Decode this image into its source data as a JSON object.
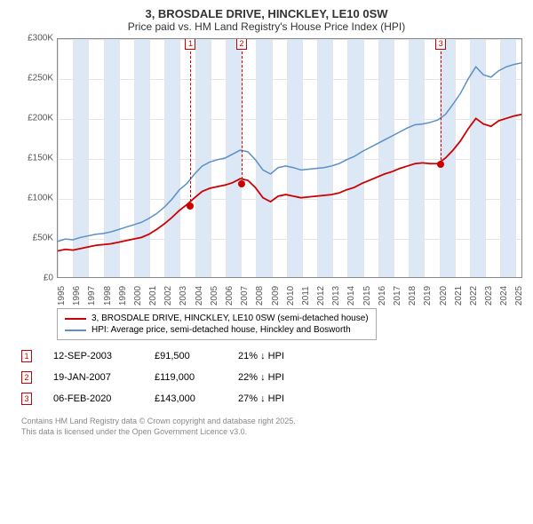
{
  "title": "3, BROSDALE DRIVE, HINCKLEY, LE10 0SW",
  "subtitle": "Price paid vs. HM Land Registry's House Price Index (HPI)",
  "chart": {
    "type": "line",
    "xlim": [
      1995,
      2025.5
    ],
    "ylim": [
      0,
      300000
    ],
    "y_ticks": [
      0,
      50000,
      100000,
      150000,
      200000,
      250000,
      300000
    ],
    "y_labels": [
      "£0",
      "£50K",
      "£100K",
      "£150K",
      "£200K",
      "£250K",
      "£300K"
    ],
    "x_ticks": [
      1995,
      1996,
      1997,
      1998,
      1999,
      2000,
      2001,
      2002,
      2003,
      2004,
      2005,
      2006,
      2007,
      2008,
      2009,
      2010,
      2011,
      2012,
      2013,
      2014,
      2015,
      2016,
      2017,
      2018,
      2019,
      2020,
      2021,
      2022,
      2023,
      2024,
      2025
    ],
    "background_color": "#ffffff",
    "grid_color": "#e5e5e5",
    "band_color": "#dce8f5",
    "series": [
      {
        "name": "hpi",
        "color": "#5b8fc7",
        "width": 1.5,
        "points": [
          [
            1995,
            45000
          ],
          [
            1995.5,
            48000
          ],
          [
            1996,
            47000
          ],
          [
            1996.5,
            50000
          ],
          [
            1997,
            52000
          ],
          [
            1997.5,
            54000
          ],
          [
            1998,
            55000
          ],
          [
            1998.5,
            57000
          ],
          [
            1999,
            60000
          ],
          [
            1999.5,
            63000
          ],
          [
            2000,
            66000
          ],
          [
            2000.5,
            69000
          ],
          [
            2001,
            74000
          ],
          [
            2001.5,
            80000
          ],
          [
            2002,
            88000
          ],
          [
            2002.5,
            98000
          ],
          [
            2003,
            110000
          ],
          [
            2003.5,
            118000
          ],
          [
            2004,
            130000
          ],
          [
            2004.5,
            140000
          ],
          [
            2005,
            145000
          ],
          [
            2005.5,
            148000
          ],
          [
            2006,
            150000
          ],
          [
            2006.5,
            155000
          ],
          [
            2007,
            160000
          ],
          [
            2007.5,
            158000
          ],
          [
            2008,
            148000
          ],
          [
            2008.5,
            135000
          ],
          [
            2009,
            130000
          ],
          [
            2009.5,
            138000
          ],
          [
            2010,
            140000
          ],
          [
            2010.5,
            138000
          ],
          [
            2011,
            135000
          ],
          [
            2011.5,
            136000
          ],
          [
            2012,
            137000
          ],
          [
            2012.5,
            138000
          ],
          [
            2013,
            140000
          ],
          [
            2013.5,
            143000
          ],
          [
            2014,
            148000
          ],
          [
            2014.5,
            152000
          ],
          [
            2015,
            158000
          ],
          [
            2015.5,
            163000
          ],
          [
            2016,
            168000
          ],
          [
            2016.5,
            173000
          ],
          [
            2017,
            178000
          ],
          [
            2017.5,
            183000
          ],
          [
            2018,
            188000
          ],
          [
            2018.5,
            192000
          ],
          [
            2019,
            193000
          ],
          [
            2019.5,
            195000
          ],
          [
            2020,
            198000
          ],
          [
            2020.5,
            205000
          ],
          [
            2021,
            218000
          ],
          [
            2021.5,
            232000
          ],
          [
            2022,
            250000
          ],
          [
            2022.5,
            265000
          ],
          [
            2023,
            255000
          ],
          [
            2023.5,
            252000
          ],
          [
            2024,
            260000
          ],
          [
            2024.5,
            265000
          ],
          [
            2025,
            268000
          ],
          [
            2025.5,
            270000
          ]
        ]
      },
      {
        "name": "property",
        "color": "#cc0000",
        "width": 1.8,
        "points": [
          [
            1995,
            33000
          ],
          [
            1995.5,
            35000
          ],
          [
            1996,
            34000
          ],
          [
            1996.5,
            36000
          ],
          [
            1997,
            38000
          ],
          [
            1997.5,
            40000
          ],
          [
            1998,
            41000
          ],
          [
            1998.5,
            42000
          ],
          [
            1999,
            44000
          ],
          [
            1999.5,
            46000
          ],
          [
            2000,
            48000
          ],
          [
            2000.5,
            50000
          ],
          [
            2001,
            54000
          ],
          [
            2001.5,
            60000
          ],
          [
            2002,
            67000
          ],
          [
            2002.5,
            75000
          ],
          [
            2003,
            84000
          ],
          [
            2003.5,
            91500
          ],
          [
            2004,
            100000
          ],
          [
            2004.5,
            108000
          ],
          [
            2005,
            112000
          ],
          [
            2005.5,
            114000
          ],
          [
            2006,
            116000
          ],
          [
            2006.5,
            119000
          ],
          [
            2007,
            124000
          ],
          [
            2007.5,
            122000
          ],
          [
            2008,
            113000
          ],
          [
            2008.5,
            100000
          ],
          [
            2009,
            95000
          ],
          [
            2009.5,
            102000
          ],
          [
            2010,
            104000
          ],
          [
            2010.5,
            102000
          ],
          [
            2011,
            100000
          ],
          [
            2011.5,
            101000
          ],
          [
            2012,
            102000
          ],
          [
            2012.5,
            103000
          ],
          [
            2013,
            104000
          ],
          [
            2013.5,
            106000
          ],
          [
            2014,
            110000
          ],
          [
            2014.5,
            113000
          ],
          [
            2015,
            118000
          ],
          [
            2015.5,
            122000
          ],
          [
            2016,
            126000
          ],
          [
            2016.5,
            130000
          ],
          [
            2017,
            133000
          ],
          [
            2017.5,
            137000
          ],
          [
            2018,
            140000
          ],
          [
            2018.5,
            143000
          ],
          [
            2019,
            144000
          ],
          [
            2019.5,
            143000
          ],
          [
            2020,
            143000
          ],
          [
            2020.5,
            150000
          ],
          [
            2021,
            160000
          ],
          [
            2021.5,
            172000
          ],
          [
            2022,
            187000
          ],
          [
            2022.5,
            200000
          ],
          [
            2023,
            193000
          ],
          [
            2023.5,
            190000
          ],
          [
            2024,
            197000
          ],
          [
            2024.5,
            200000
          ],
          [
            2025,
            203000
          ],
          [
            2025.5,
            205000
          ]
        ]
      }
    ],
    "markers": [
      {
        "num": "1",
        "x": 2003.7,
        "y": 91500
      },
      {
        "num": "2",
        "x": 2007.05,
        "y": 119000
      },
      {
        "num": "3",
        "x": 2020.1,
        "y": 143000
      }
    ]
  },
  "legend": {
    "property": "3, BROSDALE DRIVE, HINCKLEY, LE10 0SW (semi-detached house)",
    "hpi": "HPI: Average price, semi-detached house, Hinckley and Bosworth",
    "property_color": "#cc0000",
    "hpi_color": "#5b8fc7"
  },
  "sales": [
    {
      "num": "1",
      "date": "12-SEP-2003",
      "price": "£91,500",
      "diff": "21% ↓ HPI"
    },
    {
      "num": "2",
      "date": "19-JAN-2007",
      "price": "£119,000",
      "diff": "22% ↓ HPI"
    },
    {
      "num": "3",
      "date": "06-FEB-2020",
      "price": "£143,000",
      "diff": "27% ↓ HPI"
    }
  ],
  "footer_line1": "Contains HM Land Registry data © Crown copyright and database right 2025.",
  "footer_line2": "This data is licensed under the Open Government Licence v3.0."
}
